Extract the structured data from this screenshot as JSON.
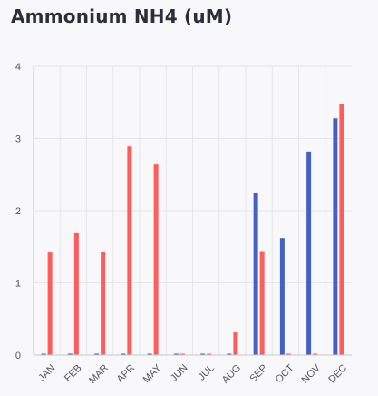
{
  "title": "Ammonium NH4 (uM)",
  "colors": {
    "series_a": "#4560c4",
    "series_b": "#ff5c5c",
    "grid": "#e6e6ea",
    "axis": "#c8c8cc",
    "background": "#f8f8fa"
  },
  "chart_data": {
    "type": "bar",
    "title": "Ammonium NH4 (uM)",
    "xlabel": "",
    "ylabel": "",
    "ylim": [
      0,
      4
    ],
    "yticks": [
      0,
      1,
      2,
      3,
      4
    ],
    "grid": true,
    "legend": "none",
    "categories": [
      "JAN",
      "FEB",
      "MAR",
      "APR",
      "MAY",
      "JUN",
      "JUL",
      "AUG",
      "SEP",
      "OCT",
      "NOV",
      "DEC"
    ],
    "series": [
      {
        "color": "#4560c4",
        "values": [
          0.01,
          0.01,
          0.01,
          0.01,
          0.01,
          0.01,
          0.01,
          0.01,
          2.25,
          1.62,
          2.82,
          3.28
        ]
      },
      {
        "color": "#ff5c5c",
        "values": [
          1.42,
          1.69,
          1.43,
          2.89,
          2.64,
          0.01,
          0.01,
          0.32,
          1.44,
          0.01,
          0.01,
          3.48
        ]
      }
    ]
  }
}
